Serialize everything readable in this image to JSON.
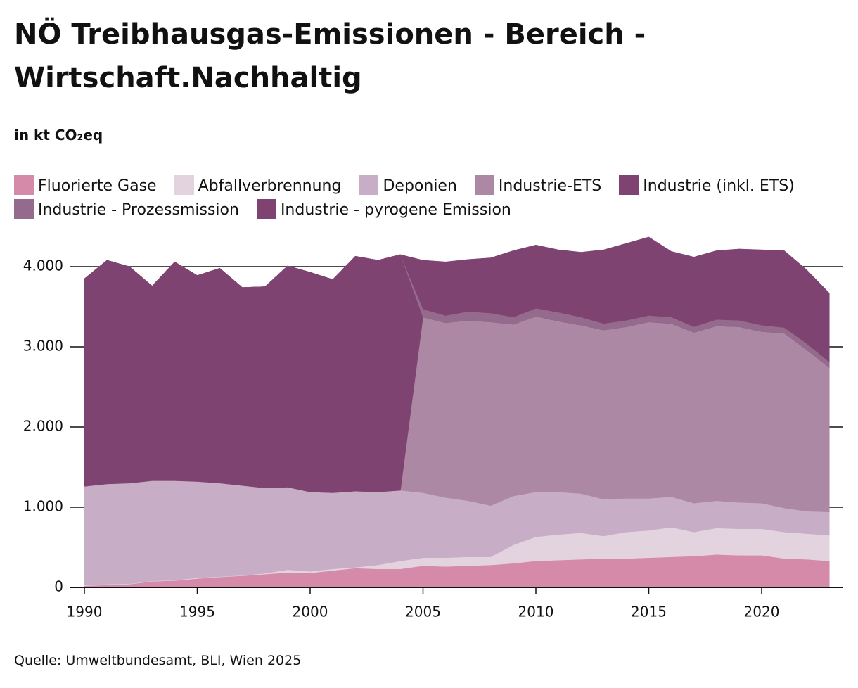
{
  "chart_data": {
    "type": "stacked_area",
    "title": "NÖ Treibhausgas-Emissionen - Bereich - Wirtschaft.Nachhaltig",
    "subtitle": "in kt CO₂eq",
    "source": "Quelle: Umweltbundesamt, BLI, Wien 2025",
    "x": [
      1990,
      1991,
      1992,
      1993,
      1994,
      1995,
      1996,
      1997,
      1998,
      1999,
      2000,
      2001,
      2002,
      2003,
      2004,
      2005,
      2006,
      2007,
      2008,
      2009,
      2010,
      2011,
      2012,
      2013,
      2014,
      2015,
      2016,
      2017,
      2018,
      2019,
      2020,
      2021,
      2022,
      2023
    ],
    "xlim": [
      1990,
      2023.6
    ],
    "xticks": [
      1990,
      1995,
      2000,
      2005,
      2010,
      2015,
      2020
    ],
    "ylim": [
      0,
      4600
    ],
    "yticks": [
      0,
      {
        "value": 1000,
        "label": "1.000"
      },
      {
        "value": 2000,
        "label": "2.000"
      },
      {
        "value": 3000,
        "label": "3.000"
      },
      {
        "value": 4000,
        "label": "4.000"
      }
    ],
    "grid": true,
    "series": [
      {
        "name": "Fluorierte Gase",
        "color": "#d48aa8",
        "values": [
          20,
          30,
          40,
          75,
          85,
          110,
          130,
          145,
          165,
          185,
          180,
          210,
          240,
          230,
          230,
          270,
          260,
          270,
          280,
          300,
          330,
          340,
          350,
          360,
          360,
          370,
          380,
          390,
          410,
          400,
          400,
          360,
          350,
          330
        ]
      },
      {
        "name": "Abfallverbrennung",
        "color": "#e3d3df",
        "values": [
          10,
          10,
          5,
          5,
          5,
          10,
          5,
          5,
          10,
          35,
          20,
          20,
          10,
          50,
          100,
          100,
          110,
          110,
          100,
          230,
          300,
          320,
          330,
          280,
          330,
          340,
          370,
          300,
          330,
          330,
          330,
          330,
          320,
          320
        ]
      },
      {
        "name": "Deponien",
        "color": "#c7aec6",
        "values": [
          1230,
          1250,
          1255,
          1250,
          1240,
          1200,
          1165,
          1120,
          1065,
          1030,
          990,
          950,
          950,
          910,
          880,
          810,
          750,
          700,
          640,
          610,
          560,
          530,
          490,
          460,
          420,
          400,
          380,
          360,
          340,
          330,
          320,
          300,
          280,
          290
        ]
      },
      {
        "name": "Industrie-ETS",
        "color": "#ad88a4",
        "values": [
          0,
          0,
          0,
          0,
          0,
          0,
          0,
          0,
          0,
          0,
          0,
          0,
          0,
          0,
          0,
          2190,
          2180,
          2250,
          2290,
          2140,
          2190,
          2130,
          2100,
          2110,
          2140,
          2200,
          2160,
          2130,
          2180,
          2190,
          2140,
          2180,
          2010,
          1800
        ]
      },
      {
        "name": "Industrie (inkl. ETS)",
        "color": "#7f4371",
        "values": [
          2590,
          2790,
          2700,
          2430,
          2730,
          2570,
          2680,
          2470,
          2510,
          2760,
          2740,
          2660,
          2930,
          2890,
          2940,
          0,
          0,
          0,
          0,
          0,
          0,
          0,
          0,
          0,
          0,
          0,
          0,
          0,
          0,
          0,
          0,
          0,
          0,
          0
        ]
      },
      {
        "name": "Industrie - Prozessmission",
        "color": "#956b8d",
        "values": [
          0,
          0,
          0,
          0,
          0,
          0,
          0,
          0,
          0,
          0,
          0,
          0,
          0,
          0,
          0,
          100,
          90,
          110,
          110,
          90,
          100,
          110,
          100,
          80,
          80,
          80,
          80,
          70,
          80,
          80,
          80,
          70,
          80,
          70
        ]
      },
      {
        "name": "Industrie - pyrogene Emission",
        "color": "#7f4371",
        "values": [
          0,
          0,
          0,
          0,
          0,
          0,
          0,
          0,
          0,
          0,
          0,
          0,
          0,
          0,
          0,
          610,
          670,
          650,
          690,
          830,
          790,
          780,
          810,
          920,
          960,
          980,
          820,
          870,
          860,
          890,
          940,
          960,
          920,
          860
        ]
      }
    ]
  }
}
